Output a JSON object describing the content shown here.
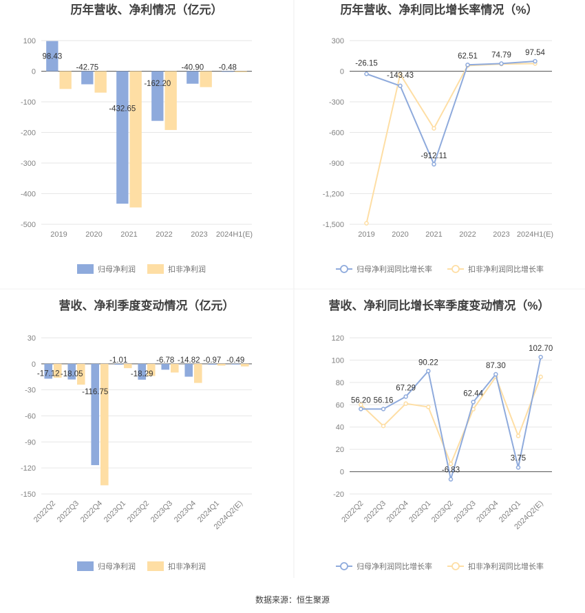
{
  "source_text": "数据来源：恒生聚源",
  "chart_data": [
    {
      "type": "bar",
      "title": "历年营收、净利情况（亿元）",
      "categories": [
        "2019",
        "2020",
        "2021",
        "2022",
        "2023",
        "2024H1(E)"
      ],
      "ylim": [
        -500,
        100
      ],
      "yticks": [
        100,
        0,
        -100,
        -200,
        -300,
        -400,
        -500
      ],
      "grid": true,
      "legend_position": "bottom",
      "series": [
        {
          "name": "归母净利润",
          "color": "#8eaadc",
          "values": [
            98.43,
            -42.75,
            -432.65,
            -162.2,
            -40.9,
            -0.48
          ],
          "labels": [
            "98.43",
            "-42.75",
            "-432.65",
            "-162.20",
            "-40.90",
            "-0.48"
          ]
        },
        {
          "name": "扣非净利润",
          "color": "#fedea4",
          "values": [
            -58,
            -70,
            -445,
            -192,
            -52,
            -3
          ]
        }
      ]
    },
    {
      "type": "line",
      "title": "历年营收、净利同比增长率情况（%）",
      "categories": [
        "2019",
        "2020",
        "2021",
        "2022",
        "2023",
        "2024H1(E)"
      ],
      "ylim": [
        -1500,
        300
      ],
      "yticks": [
        300,
        0,
        -300,
        -600,
        -900,
        -1200,
        -1500
      ],
      "ytick_labels": [
        "300",
        "0",
        "-300",
        "-600",
        "-900",
        "-1,200",
        "-1,500"
      ],
      "grid": true,
      "legend_position": "bottom",
      "series": [
        {
          "name": "归母净利润同比增长率",
          "color": "#8eaadc",
          "values": [
            -26.15,
            -143.43,
            -912.11,
            62.51,
            74.79,
            97.54
          ],
          "labels": [
            "-26.15",
            "-143.43",
            "-912.11",
            "62.51",
            "74.79",
            "97.54"
          ]
        },
        {
          "name": "扣非净利润同比增长率",
          "color": "#fedea4",
          "values": [
            -1490,
            -30,
            -560,
            55,
            70,
            75
          ]
        }
      ]
    },
    {
      "type": "bar",
      "title": "营收、净利季度变动情况（亿元）",
      "categories": [
        "2022Q2",
        "2022Q3",
        "2022Q4",
        "2023Q1",
        "2023Q2",
        "2023Q3",
        "2023Q4",
        "2024Q1",
        "2024Q2(E)"
      ],
      "ylim": [
        -150,
        30
      ],
      "yticks": [
        30,
        0,
        -30,
        -60,
        -90,
        -120,
        -150
      ],
      "grid": true,
      "legend_position": "bottom",
      "series": [
        {
          "name": "归母净利润",
          "color": "#8eaadc",
          "values": [
            -17.12,
            -18.05,
            -116.75,
            -1.01,
            -18.29,
            -6.78,
            -14.82,
            -0.97,
            -0.49
          ],
          "labels": [
            "-17.12",
            "-18.05",
            "-116.75",
            "-1.01",
            "-18.29",
            "-6.78",
            "-14.82",
            "-0.97",
            "-0.49"
          ]
        },
        {
          "name": "扣非净利润",
          "color": "#fedea4",
          "values": [
            -16,
            -24,
            -140,
            -5,
            -14,
            -10,
            -22,
            -2,
            -3
          ]
        }
      ]
    },
    {
      "type": "line",
      "title": "营收、净利同比增长率季度变动情况（%）",
      "categories": [
        "2022Q2",
        "2022Q3",
        "2022Q4",
        "2023Q1",
        "2023Q2",
        "2023Q3",
        "2023Q4",
        "2024Q1",
        "2024Q2(E)"
      ],
      "ylim": [
        -20,
        120
      ],
      "yticks": [
        120,
        100,
        80,
        60,
        40,
        20,
        0,
        -20
      ],
      "grid": true,
      "legend_position": "bottom",
      "series": [
        {
          "name": "归母净利润同比增长率",
          "color": "#8eaadc",
          "values": [
            56.2,
            56.16,
            67.29,
            90.22,
            -6.83,
            62.44,
            87.3,
            3.75,
            102.7
          ],
          "labels": [
            "56.20",
            "56.16",
            "67.29",
            "90.22",
            "-6.83",
            "62.44",
            "87.30",
            "3.75",
            "102.70"
          ]
        },
        {
          "name": "扣非净利润同比增长率",
          "color": "#fedea4",
          "values": [
            60,
            41,
            61,
            58,
            7,
            56,
            85,
            32,
            85
          ]
        }
      ]
    }
  ]
}
